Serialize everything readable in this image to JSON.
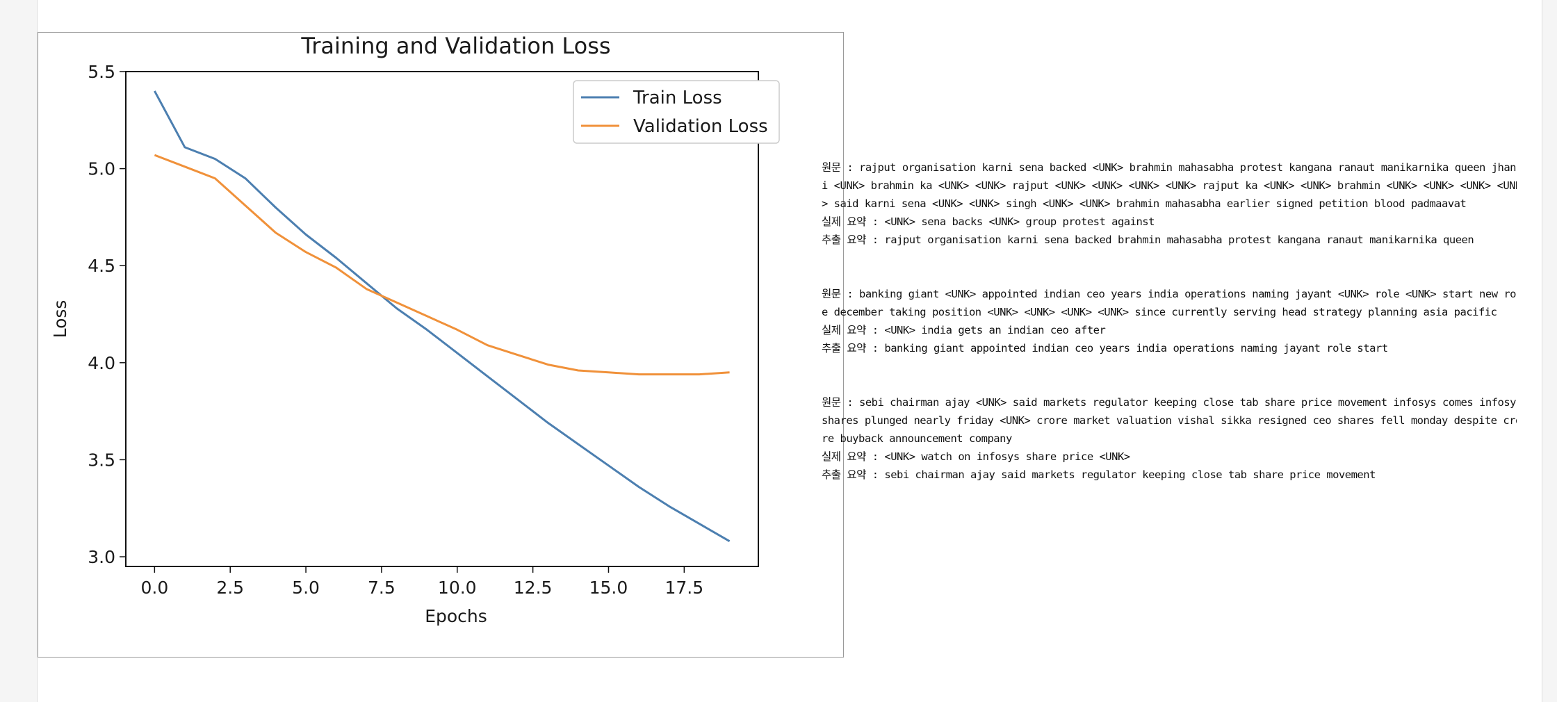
{
  "chart_data": {
    "type": "line",
    "title": "Training and Validation Loss",
    "xlabel": "Epochs",
    "ylabel": "Loss",
    "xlim": [
      -0.95,
      19.95
    ],
    "ylim": [
      2.95,
      5.5
    ],
    "xticks": [
      "0.0",
      "2.5",
      "5.0",
      "7.5",
      "10.0",
      "12.5",
      "15.0",
      "17.5"
    ],
    "yticks": [
      "3.0",
      "3.5",
      "4.0",
      "4.5",
      "5.0",
      "5.5"
    ],
    "grid": false,
    "legend": "top-right",
    "x": [
      0,
      1,
      2,
      3,
      4,
      5,
      6,
      7,
      8,
      9,
      10,
      11,
      12,
      13,
      14,
      15,
      16,
      17,
      18,
      19
    ],
    "series": [
      {
        "name": "Train Loss",
        "color": "#4c7fb0",
        "values": [
          5.4,
          5.11,
          5.05,
          4.95,
          4.8,
          4.66,
          4.54,
          4.41,
          4.28,
          4.17,
          4.05,
          3.93,
          3.81,
          3.69,
          3.58,
          3.47,
          3.36,
          3.26,
          3.17,
          3.08
        ]
      },
      {
        "name": "Validation Loss",
        "color": "#f0913a",
        "values": [
          5.07,
          5.01,
          4.95,
          4.81,
          4.67,
          4.57,
          4.49,
          4.38,
          4.31,
          4.24,
          4.17,
          4.09,
          4.04,
          3.99,
          3.96,
          3.95,
          3.94,
          3.94,
          3.94,
          3.95
        ]
      }
    ]
  },
  "output": {
    "samples": [
      {
        "orig_lines": [
          "원문 : rajput organisation karni sena backed <UNK> brahmin mahasabha protest kangana ranaut manikarnika queen jhans",
          "i <UNK> brahmin ka <UNK> <UNK> rajput <UNK> <UNK> <UNK> <UNK> rajput ka <UNK> <UNK> brahmin <UNK> <UNK> <UNK> <UNK",
          "> said karni sena <UNK> <UNK> singh <UNK> <UNK> brahmin mahasabha earlier signed petition blood padmaavat"
        ],
        "actual": "실제 요약 : <UNK> sena backs <UNK> group protest against",
        "predicted": "추출 요약 : rajput organisation karni sena backed brahmin mahasabha protest kangana ranaut manikarnika queen"
      },
      {
        "orig_lines": [
          "원문 : banking giant <UNK> appointed indian ceo years india operations naming jayant <UNK> role <UNK> start new rol",
          "e december taking position <UNK> <UNK> <UNK> <UNK> since currently serving head strategy planning asia pacific"
        ],
        "actual": "실제 요약 : <UNK> india gets an indian ceo after",
        "predicted": "추출 요약 : banking giant appointed indian ceo years india operations naming jayant role start"
      },
      {
        "orig_lines": [
          "원문 : sebi chairman ajay <UNK> said markets regulator keeping close tab share price movement infosys comes infosys",
          "shares plunged nearly friday <UNK> crore market valuation vishal sikka resigned ceo shares fell monday despite cro",
          "re buyback announcement company"
        ],
        "actual": "실제 요약 : <UNK> watch on infosys share price <UNK>",
        "predicted": "추출 요약 : sebi chairman ajay said markets regulator keeping close tab share price movement"
      }
    ]
  }
}
